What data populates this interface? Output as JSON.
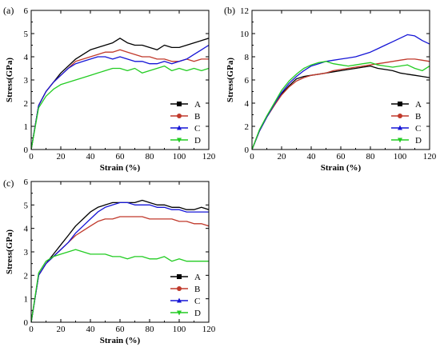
{
  "series_colors": {
    "A": "#000000",
    "B": "#c0392b",
    "C": "#1515d6",
    "D": "#22cc22"
  },
  "chart_data": [
    {
      "panel": "(a)",
      "type": "line",
      "xlabel": "Strain (%)",
      "ylabel": "Stress(GPa)",
      "xlim": [
        0,
        120
      ],
      "ylim": [
        0,
        6
      ],
      "xticks": [
        0,
        20,
        40,
        60,
        80,
        100,
        120
      ],
      "yticks": [
        0,
        1,
        2,
        3,
        4,
        5,
        6
      ],
      "legend": "lower-right",
      "series": [
        {
          "name": "A",
          "x": [
            0,
            5,
            10,
            15,
            20,
            25,
            30,
            35,
            40,
            45,
            50,
            55,
            60,
            65,
            70,
            75,
            80,
            85,
            90,
            95,
            100,
            105,
            110,
            115,
            120
          ],
          "y": [
            0,
            1.9,
            2.5,
            2.9,
            3.3,
            3.6,
            3.9,
            4.1,
            4.3,
            4.4,
            4.5,
            4.6,
            4.8,
            4.6,
            4.5,
            4.5,
            4.4,
            4.3,
            4.5,
            4.4,
            4.4,
            4.5,
            4.6,
            4.7,
            4.8
          ]
        },
        {
          "name": "B",
          "x": [
            0,
            5,
            10,
            15,
            20,
            25,
            30,
            35,
            40,
            45,
            50,
            55,
            60,
            65,
            70,
            75,
            80,
            85,
            90,
            95,
            100,
            105,
            110,
            115,
            120
          ],
          "y": [
            0,
            1.9,
            2.5,
            2.9,
            3.2,
            3.5,
            3.8,
            3.9,
            4.0,
            4.1,
            4.2,
            4.2,
            4.3,
            4.2,
            4.1,
            4.0,
            4.0,
            3.9,
            3.9,
            3.8,
            3.8,
            3.9,
            3.8,
            3.9,
            3.9
          ]
        },
        {
          "name": "C",
          "x": [
            0,
            5,
            10,
            15,
            20,
            25,
            30,
            35,
            40,
            45,
            50,
            55,
            60,
            65,
            70,
            75,
            80,
            85,
            90,
            95,
            100,
            105,
            110,
            115,
            120
          ],
          "y": [
            0,
            1.9,
            2.5,
            2.9,
            3.2,
            3.5,
            3.7,
            3.8,
            3.9,
            4.0,
            4.0,
            3.9,
            4.0,
            3.9,
            3.8,
            3.8,
            3.7,
            3.7,
            3.8,
            3.7,
            3.8,
            3.9,
            4.1,
            4.3,
            4.5
          ]
        },
        {
          "name": "D",
          "x": [
            0,
            5,
            10,
            15,
            20,
            25,
            30,
            35,
            40,
            45,
            50,
            55,
            60,
            65,
            70,
            75,
            80,
            85,
            90,
            95,
            100,
            105,
            110,
            115,
            120
          ],
          "y": [
            0,
            1.8,
            2.3,
            2.6,
            2.8,
            2.9,
            3.0,
            3.1,
            3.2,
            3.3,
            3.4,
            3.5,
            3.5,
            3.4,
            3.5,
            3.3,
            3.4,
            3.5,
            3.6,
            3.4,
            3.5,
            3.4,
            3.5,
            3.4,
            3.5
          ]
        }
      ]
    },
    {
      "panel": "(b)",
      "type": "line",
      "xlabel": "Strain (%)",
      "ylabel": "Stress(GPa)",
      "xlim": [
        0,
        120
      ],
      "ylim": [
        0,
        12
      ],
      "xticks": [
        0,
        20,
        40,
        60,
        80,
        100,
        120
      ],
      "yticks": [
        0,
        2,
        4,
        6,
        8,
        10,
        12
      ],
      "legend": "lower-right",
      "series": [
        {
          "name": "A",
          "x": [
            0,
            5,
            10,
            15,
            20,
            25,
            30,
            35,
            40,
            45,
            50,
            55,
            60,
            65,
            70,
            75,
            80,
            85,
            90,
            95,
            100,
            105,
            110,
            115,
            120
          ],
          "y": [
            0,
            1.6,
            2.8,
            3.8,
            4.8,
            5.5,
            6.1,
            6.3,
            6.4,
            6.5,
            6.6,
            6.7,
            6.8,
            6.9,
            7.0,
            7.1,
            7.2,
            7.0,
            6.9,
            6.8,
            6.6,
            6.5,
            6.4,
            6.3,
            6.2
          ]
        },
        {
          "name": "B",
          "x": [
            0,
            5,
            10,
            15,
            20,
            25,
            30,
            35,
            40,
            45,
            50,
            55,
            60,
            65,
            70,
            75,
            80,
            85,
            90,
            95,
            100,
            105,
            110,
            115,
            120
          ],
          "y": [
            0,
            1.6,
            2.8,
            3.8,
            4.7,
            5.4,
            5.9,
            6.2,
            6.4,
            6.5,
            6.6,
            6.8,
            6.9,
            7.0,
            7.1,
            7.2,
            7.3,
            7.4,
            7.5,
            7.6,
            7.7,
            7.8,
            7.8,
            7.7,
            7.6
          ]
        },
        {
          "name": "C",
          "x": [
            0,
            5,
            10,
            15,
            20,
            25,
            30,
            35,
            40,
            45,
            50,
            55,
            60,
            65,
            70,
            75,
            80,
            85,
            90,
            95,
            100,
            105,
            110,
            115,
            120
          ],
          "y": [
            0,
            1.6,
            2.8,
            3.9,
            4.9,
            5.7,
            6.3,
            6.8,
            7.2,
            7.4,
            7.6,
            7.7,
            7.8,
            7.9,
            8.0,
            8.2,
            8.4,
            8.7,
            9.0,
            9.3,
            9.6,
            9.9,
            9.8,
            9.4,
            9.1
          ]
        },
        {
          "name": "D",
          "x": [
            0,
            5,
            10,
            15,
            20,
            25,
            30,
            35,
            40,
            45,
            50,
            55,
            60,
            65,
            70,
            75,
            80,
            85,
            90,
            95,
            100,
            105,
            110,
            115,
            120
          ],
          "y": [
            0,
            1.7,
            2.9,
            4.0,
            5.1,
            5.9,
            6.5,
            7.0,
            7.3,
            7.5,
            7.6,
            7.4,
            7.3,
            7.2,
            7.3,
            7.4,
            7.5,
            7.3,
            7.2,
            7.1,
            7.2,
            7.3,
            7.0,
            6.8,
            7.2
          ]
        }
      ]
    },
    {
      "panel": "(c)",
      "type": "line",
      "xlabel": "Strain (%)",
      "ylabel": "Stress(GPa)",
      "xlim": [
        0,
        120
      ],
      "ylim": [
        0,
        6
      ],
      "xticks": [
        0,
        20,
        40,
        60,
        80,
        100,
        120
      ],
      "yticks": [
        0,
        1,
        2,
        3,
        4,
        5,
        6
      ],
      "legend": "lower-right",
      "series": [
        {
          "name": "A",
          "x": [
            0,
            5,
            10,
            15,
            20,
            25,
            30,
            35,
            40,
            45,
            50,
            55,
            60,
            65,
            70,
            75,
            80,
            85,
            90,
            95,
            100,
            105,
            110,
            115,
            120
          ],
          "y": [
            0,
            2.0,
            2.5,
            2.9,
            3.3,
            3.7,
            4.1,
            4.4,
            4.7,
            4.9,
            5.0,
            5.1,
            5.1,
            5.1,
            5.1,
            5.2,
            5.1,
            5.0,
            5.0,
            4.9,
            4.9,
            4.8,
            4.8,
            4.9,
            4.8
          ]
        },
        {
          "name": "B",
          "x": [
            0,
            5,
            10,
            15,
            20,
            25,
            30,
            35,
            40,
            45,
            50,
            55,
            60,
            65,
            70,
            75,
            80,
            85,
            90,
            95,
            100,
            105,
            110,
            115,
            120
          ],
          "y": [
            0,
            2.0,
            2.5,
            2.8,
            3.1,
            3.4,
            3.7,
            3.9,
            4.1,
            4.3,
            4.4,
            4.4,
            4.5,
            4.5,
            4.5,
            4.5,
            4.4,
            4.4,
            4.4,
            4.4,
            4.3,
            4.3,
            4.2,
            4.2,
            4.1
          ]
        },
        {
          "name": "C",
          "x": [
            0,
            5,
            10,
            15,
            20,
            25,
            30,
            35,
            40,
            45,
            50,
            55,
            60,
            65,
            70,
            75,
            80,
            85,
            90,
            95,
            100,
            105,
            110,
            115,
            120
          ],
          "y": [
            0,
            2.0,
            2.5,
            2.8,
            3.1,
            3.4,
            3.8,
            4.1,
            4.4,
            4.7,
            4.9,
            5.0,
            5.1,
            5.1,
            5.0,
            5.0,
            5.0,
            4.9,
            4.9,
            4.8,
            4.8,
            4.7,
            4.7,
            4.7,
            4.7
          ]
        },
        {
          "name": "D",
          "x": [
            0,
            5,
            10,
            15,
            20,
            25,
            30,
            35,
            40,
            45,
            50,
            55,
            60,
            65,
            70,
            75,
            80,
            85,
            90,
            95,
            100,
            105,
            110,
            115,
            120
          ],
          "y": [
            0,
            2.1,
            2.6,
            2.8,
            2.9,
            3.0,
            3.1,
            3.0,
            2.9,
            2.9,
            2.9,
            2.8,
            2.8,
            2.7,
            2.8,
            2.8,
            2.7,
            2.7,
            2.8,
            2.6,
            2.7,
            2.6,
            2.6,
            2.6,
            2.6
          ]
        }
      ]
    }
  ]
}
